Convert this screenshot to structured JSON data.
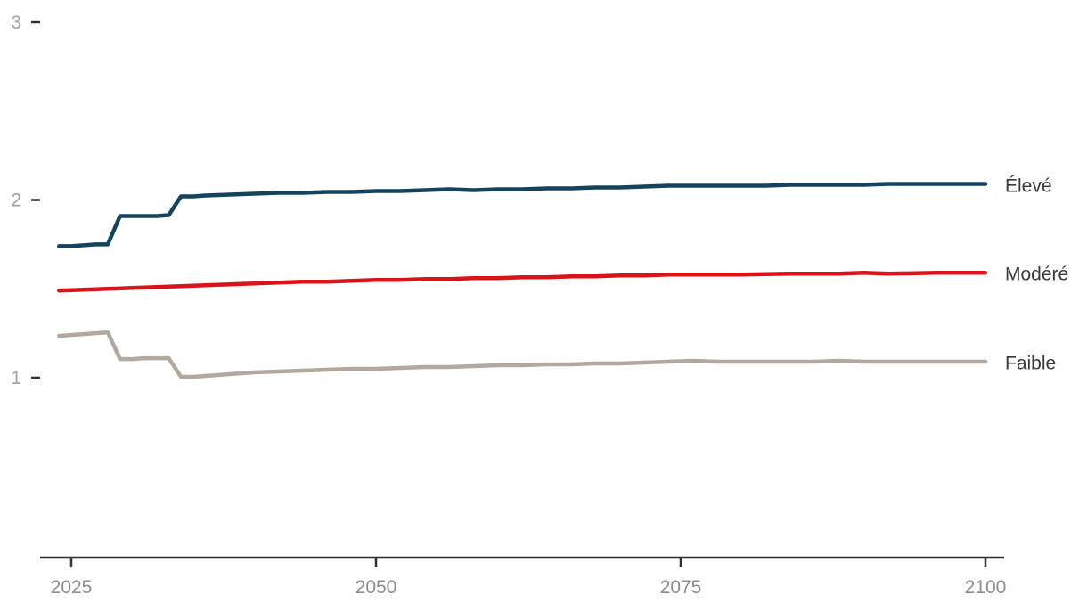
{
  "chart_data": {
    "type": "line",
    "title": "",
    "xlabel": "",
    "ylabel": "",
    "x_range": [
      2024,
      2100
    ],
    "x_ticks": [
      "2025",
      "2050",
      "2075",
      "2100"
    ],
    "x_tick_years": [
      2025,
      2050,
      2075,
      2100
    ],
    "y_ticks": [
      "1",
      "2",
      "3"
    ],
    "y_tick_values": [
      1,
      2,
      3
    ],
    "ylim_drawn": [
      1,
      3
    ],
    "grid": false,
    "legend_position": "right-of-line-ends",
    "colors": {
      "axis": "#303030",
      "x_tick_label": "#8d8d8d",
      "y_tick_label": "#a0a0a0",
      "series_label_text": "#3a3a3a",
      "background": "#ffffff"
    },
    "series": [
      {
        "name": "Élevé",
        "id": "eleve",
        "color": "#15425d",
        "points": [
          [
            2024,
            1.74
          ],
          [
            2025,
            1.74
          ],
          [
            2026,
            1.745
          ],
          [
            2027,
            1.75
          ],
          [
            2028,
            1.75
          ],
          [
            2029,
            1.91
          ],
          [
            2030,
            1.91
          ],
          [
            2031,
            1.91
          ],
          [
            2032,
            1.91
          ],
          [
            2033,
            1.915
          ],
          [
            2034,
            2.02
          ],
          [
            2035,
            2.02
          ],
          [
            2036,
            2.025
          ],
          [
            2038,
            2.03
          ],
          [
            2040,
            2.035
          ],
          [
            2042,
            2.04
          ],
          [
            2044,
            2.04
          ],
          [
            2046,
            2.045
          ],
          [
            2048,
            2.045
          ],
          [
            2050,
            2.05
          ],
          [
            2052,
            2.05
          ],
          [
            2054,
            2.055
          ],
          [
            2056,
            2.06
          ],
          [
            2058,
            2.055
          ],
          [
            2060,
            2.06
          ],
          [
            2062,
            2.06
          ],
          [
            2064,
            2.065
          ],
          [
            2066,
            2.065
          ],
          [
            2068,
            2.07
          ],
          [
            2070,
            2.07
          ],
          [
            2072,
            2.075
          ],
          [
            2074,
            2.08
          ],
          [
            2076,
            2.08
          ],
          [
            2078,
            2.08
          ],
          [
            2080,
            2.08
          ],
          [
            2082,
            2.08
          ],
          [
            2084,
            2.085
          ],
          [
            2086,
            2.085
          ],
          [
            2088,
            2.085
          ],
          [
            2090,
            2.085
          ],
          [
            2092,
            2.09
          ],
          [
            2094,
            2.09
          ],
          [
            2096,
            2.09
          ],
          [
            2098,
            2.09
          ],
          [
            2100,
            2.09
          ]
        ]
      },
      {
        "name": "Modéré",
        "id": "modere",
        "color": "#d8131a",
        "points": [
          [
            2024,
            1.49
          ],
          [
            2026,
            1.495
          ],
          [
            2028,
            1.5
          ],
          [
            2030,
            1.505
          ],
          [
            2032,
            1.51
          ],
          [
            2034,
            1.515
          ],
          [
            2036,
            1.52
          ],
          [
            2038,
            1.525
          ],
          [
            2040,
            1.53
          ],
          [
            2042,
            1.535
          ],
          [
            2044,
            1.54
          ],
          [
            2046,
            1.54
          ],
          [
            2048,
            1.545
          ],
          [
            2050,
            1.55
          ],
          [
            2052,
            1.55
          ],
          [
            2054,
            1.555
          ],
          [
            2056,
            1.555
          ],
          [
            2058,
            1.56
          ],
          [
            2060,
            1.56
          ],
          [
            2062,
            1.565
          ],
          [
            2064,
            1.565
          ],
          [
            2066,
            1.57
          ],
          [
            2068,
            1.57
          ],
          [
            2070,
            1.575
          ],
          [
            2072,
            1.575
          ],
          [
            2074,
            1.58
          ],
          [
            2076,
            1.58
          ],
          [
            2080,
            1.58
          ],
          [
            2084,
            1.585
          ],
          [
            2088,
            1.585
          ],
          [
            2090,
            1.59
          ],
          [
            2092,
            1.585
          ],
          [
            2096,
            1.59
          ],
          [
            2100,
            1.59
          ]
        ]
      },
      {
        "name": "Faible",
        "id": "faible",
        "color": "#b3a89d",
        "points": [
          [
            2024,
            1.235
          ],
          [
            2025,
            1.24
          ],
          [
            2026,
            1.245
          ],
          [
            2027,
            1.25
          ],
          [
            2028,
            1.255
          ],
          [
            2029,
            1.105
          ],
          [
            2030,
            1.105
          ],
          [
            2031,
            1.11
          ],
          [
            2032,
            1.11
          ],
          [
            2033,
            1.11
          ],
          [
            2034,
            1.005
          ],
          [
            2035,
            1.005
          ],
          [
            2036,
            1.01
          ],
          [
            2038,
            1.02
          ],
          [
            2040,
            1.03
          ],
          [
            2042,
            1.035
          ],
          [
            2044,
            1.04
          ],
          [
            2046,
            1.045
          ],
          [
            2048,
            1.05
          ],
          [
            2050,
            1.05
          ],
          [
            2052,
            1.055
          ],
          [
            2054,
            1.06
          ],
          [
            2056,
            1.06
          ],
          [
            2058,
            1.065
          ],
          [
            2060,
            1.07
          ],
          [
            2062,
            1.07
          ],
          [
            2064,
            1.075
          ],
          [
            2066,
            1.075
          ],
          [
            2068,
            1.08
          ],
          [
            2070,
            1.08
          ],
          [
            2072,
            1.085
          ],
          [
            2074,
            1.09
          ],
          [
            2076,
            1.095
          ],
          [
            2078,
            1.09
          ],
          [
            2080,
            1.09
          ],
          [
            2082,
            1.09
          ],
          [
            2084,
            1.09
          ],
          [
            2086,
            1.09
          ],
          [
            2088,
            1.095
          ],
          [
            2090,
            1.09
          ],
          [
            2092,
            1.09
          ],
          [
            2094,
            1.09
          ],
          [
            2096,
            1.09
          ],
          [
            2098,
            1.09
          ],
          [
            2100,
            1.09
          ]
        ]
      }
    ]
  }
}
